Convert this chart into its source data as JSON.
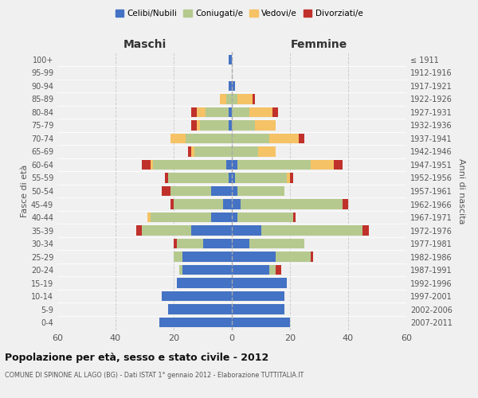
{
  "age_groups": [
    "0-4",
    "5-9",
    "10-14",
    "15-19",
    "20-24",
    "25-29",
    "30-34",
    "35-39",
    "40-44",
    "45-49",
    "50-54",
    "55-59",
    "60-64",
    "65-69",
    "70-74",
    "75-79",
    "80-84",
    "85-89",
    "90-94",
    "95-99",
    "100+"
  ],
  "birth_years": [
    "2007-2011",
    "2002-2006",
    "1997-2001",
    "1992-1996",
    "1987-1991",
    "1982-1986",
    "1977-1981",
    "1972-1976",
    "1967-1971",
    "1962-1966",
    "1957-1961",
    "1952-1956",
    "1947-1951",
    "1942-1946",
    "1937-1941",
    "1932-1936",
    "1927-1931",
    "1922-1926",
    "1917-1921",
    "1912-1916",
    "≤ 1911"
  ],
  "male": {
    "celibi": [
      25,
      22,
      24,
      19,
      17,
      17,
      10,
      14,
      7,
      3,
      7,
      1,
      2,
      0,
      0,
      1,
      1,
      0,
      1,
      0,
      1
    ],
    "coniugati": [
      0,
      0,
      0,
      0,
      1,
      3,
      9,
      17,
      21,
      17,
      14,
      21,
      25,
      13,
      16,
      10,
      8,
      2,
      0,
      0,
      0
    ],
    "vedovi": [
      0,
      0,
      0,
      0,
      0,
      0,
      0,
      0,
      1,
      0,
      0,
      0,
      1,
      1,
      5,
      1,
      3,
      2,
      0,
      0,
      0
    ],
    "divorziati": [
      0,
      0,
      0,
      0,
      0,
      0,
      1,
      2,
      0,
      1,
      3,
      1,
      3,
      1,
      0,
      2,
      2,
      0,
      0,
      0,
      0
    ]
  },
  "female": {
    "nubili": [
      20,
      18,
      18,
      19,
      13,
      15,
      6,
      10,
      2,
      3,
      2,
      1,
      2,
      0,
      0,
      0,
      0,
      0,
      1,
      0,
      0
    ],
    "coniugate": [
      0,
      0,
      0,
      0,
      2,
      12,
      19,
      35,
      19,
      35,
      16,
      18,
      25,
      9,
      13,
      8,
      6,
      2,
      0,
      0,
      0
    ],
    "vedove": [
      0,
      0,
      0,
      0,
      0,
      0,
      0,
      0,
      0,
      0,
      0,
      1,
      8,
      6,
      10,
      7,
      8,
      5,
      0,
      0,
      0
    ],
    "divorziate": [
      0,
      0,
      0,
      0,
      2,
      1,
      0,
      2,
      1,
      2,
      0,
      1,
      3,
      0,
      2,
      0,
      2,
      1,
      0,
      0,
      0
    ]
  },
  "colors": {
    "celibi_nubili": "#4472c4",
    "coniugati": "#b5c98e",
    "vedovi": "#f5c265",
    "divorziati": "#c0312b"
  },
  "xlim": 60,
  "title": "Popolazione per età, sesso e stato civile - 2012",
  "subtitle": "COMUNE DI SPINONE AL LAGO (BG) - Dati ISTAT 1° gennaio 2012 - Elaborazione TUTTITALIA.IT",
  "ylabel_left": "Fasce di età",
  "ylabel_right": "Anni di nascita",
  "xlabel_left": "Maschi",
  "xlabel_right": "Femmine",
  "bg_color": "#f0f0f0",
  "bar_height": 0.75
}
